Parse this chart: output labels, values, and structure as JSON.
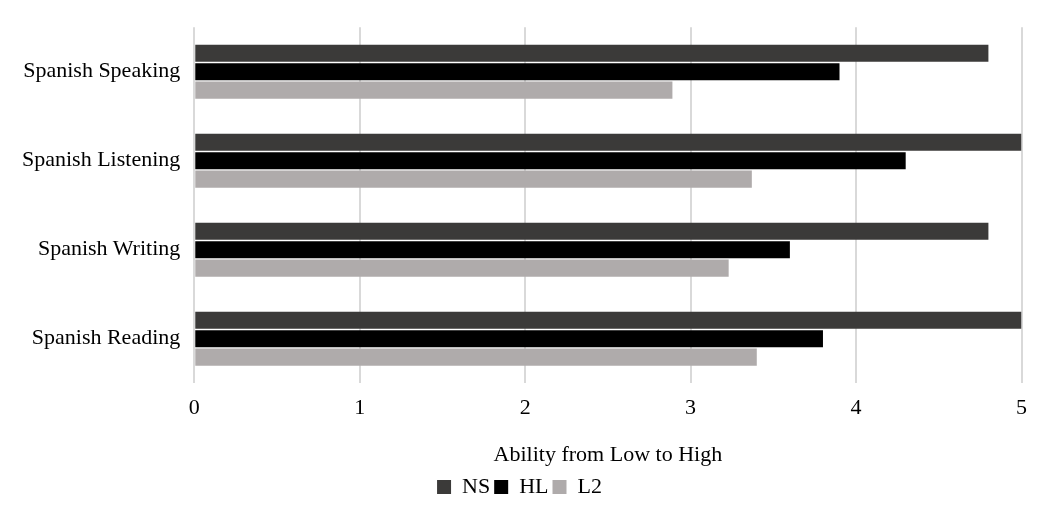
{
  "chart_data": {
    "type": "bar",
    "orientation": "horizontal",
    "xlabel": "Ability from Low to High",
    "categories": [
      "Spanish Speaking",
      "Spanish Listening",
      "Spanish Writing",
      "Spanish Reading"
    ],
    "series": [
      {
        "name": "NS",
        "color": "#3b3a39",
        "values": [
          4.8,
          5.0,
          4.8,
          5.0
        ]
      },
      {
        "name": "HL",
        "color": "#000000",
        "values": [
          3.9,
          4.3,
          3.6,
          3.8
        ]
      },
      {
        "name": "L2",
        "color": "#afabab",
        "values": [
          2.89,
          3.37,
          3.23,
          3.4
        ]
      }
    ],
    "xlim": [
      0,
      5
    ],
    "xticks": [
      0,
      1,
      2,
      3,
      4,
      5
    ],
    "grid": "x",
    "legend": "bottom"
  }
}
